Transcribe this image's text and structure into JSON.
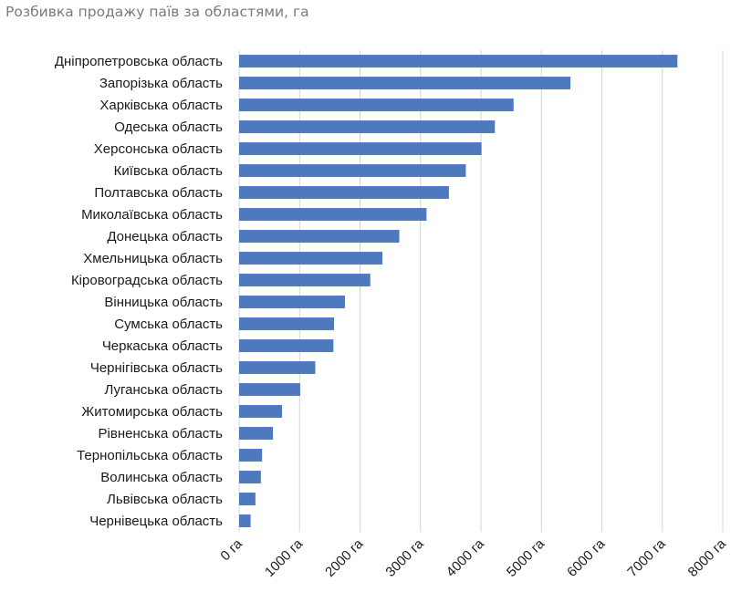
{
  "chart_data": {
    "type": "bar",
    "orientation": "horizontal",
    "title": "Розбивка продажу паїв за областями, га",
    "xlabel": "",
    "ylabel": "",
    "xlim": [
      0,
      8000
    ],
    "grid": true,
    "legend": "none",
    "bar_color": "#4f79bf",
    "grid_color": "#d4d4d4",
    "tick_labels": [
      "0 га",
      "1000 га",
      "2000 га",
      "3000 га",
      "4000 га",
      "5000 га",
      "6000 га",
      "7000 га",
      "8000 га"
    ],
    "ticks": [
      0,
      1000,
      2000,
      3000,
      4000,
      5000,
      6000,
      7000,
      8000
    ],
    "categories": [
      "Дніпропетровська область",
      "Запорізька область",
      "Харківська область",
      "Одеська область",
      "Херсонська область",
      "Київська область",
      "Полтавська область",
      "Миколаївська область",
      "Донецька область",
      "Хмельницька область",
      "Кіровоградська область",
      "Вінницька область",
      "Сумська область",
      "Черкаська область",
      "Чернігівська область",
      "Луганська область",
      "Житомирська область",
      "Рівненська область",
      "Тернопільська область",
      "Волинська область",
      "Львівська область",
      "Чернівецька область"
    ],
    "values": [
      7250,
      5480,
      4540,
      4230,
      4010,
      3750,
      3470,
      3100,
      2650,
      2370,
      2170,
      1750,
      1570,
      1560,
      1260,
      1010,
      710,
      560,
      380,
      360,
      270,
      190
    ]
  }
}
